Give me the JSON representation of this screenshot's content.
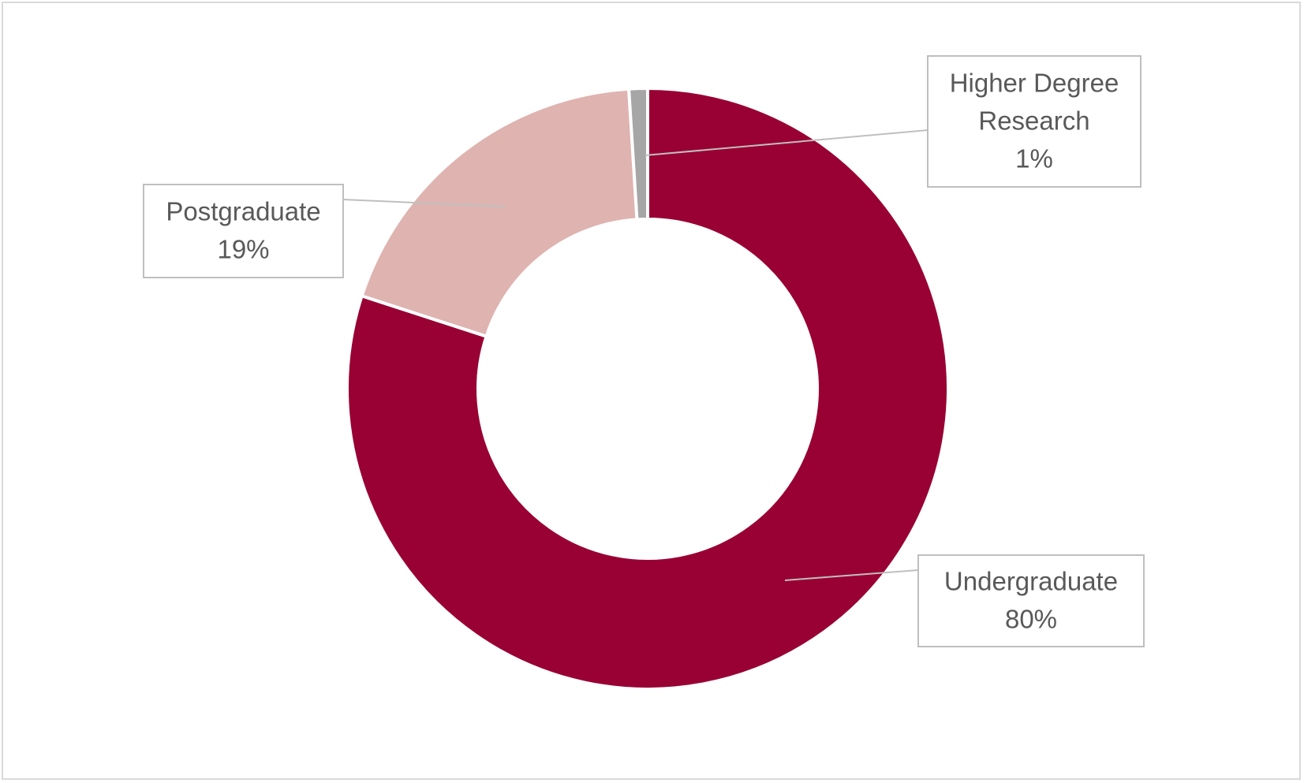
{
  "chart_data": {
    "type": "doughnut",
    "title": "",
    "categories": [
      "Undergraduate",
      "Postgraduate",
      "Higher Degree Research"
    ],
    "values": [
      80,
      19,
      1
    ],
    "unit": "%",
    "series": [
      {
        "values": [
          80,
          19,
          1
        ]
      }
    ],
    "colors": [
      "#990033",
      "#dfb3b0",
      "#a6a6a6"
    ],
    "data_labels": [
      {
        "name": "Undergraduate",
        "value": "80%"
      },
      {
        "name": "Postgraduate",
        "value": "19%"
      },
      {
        "name": "Higher Degree Research",
        "value": "1%"
      }
    ],
    "legend": "none"
  }
}
